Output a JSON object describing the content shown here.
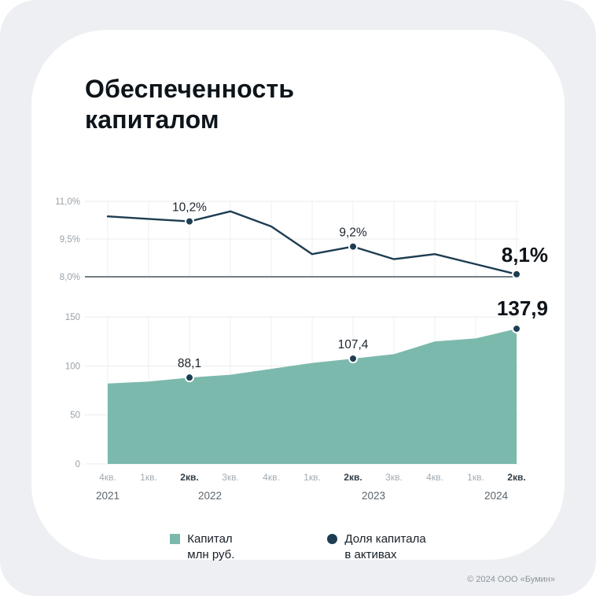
{
  "card": {
    "title_line1": "Обеспеченность",
    "title_line2": "капиталом",
    "footer": "© 2024 ООО «Бумин»"
  },
  "colors": {
    "background": "#edeff3",
    "card": "#ffffff",
    "area_fill": "#7cb9ad",
    "line": "#1d3d52",
    "dot": "#1d3d52",
    "grid": "#e8ecee",
    "vgrid": "#eef1f2",
    "baseline": "#46525b"
  },
  "legend": {
    "items": [
      {
        "type": "square",
        "color": "#7cb9ad",
        "label_line1": "Капитал",
        "label_line2": "млн руб."
      },
      {
        "type": "dot",
        "color": "#1d3d52",
        "label_line1": "Доля капитала",
        "label_line2": "в активах"
      }
    ]
  },
  "chart_data": [
    {
      "type": "line",
      "name": "Доля капитала в активах",
      "unit": "%",
      "x": [
        "4кв. 2021",
        "1кв. 2022",
        "2кв. 2022",
        "3кв. 2022",
        "4кв. 2022",
        "1кв. 2023",
        "2кв. 2023",
        "3кв. 2023",
        "4кв. 2023",
        "1кв. 2024",
        "2кв. 2024"
      ],
      "values": [
        10.4,
        10.3,
        10.2,
        10.6,
        10.0,
        8.9,
        9.2,
        8.7,
        8.9,
        8.5,
        8.1
      ],
      "ylim": [
        8.0,
        11.0
      ],
      "yticks": [
        "11,0%",
        "9,5%",
        "8,0%"
      ],
      "ytick_values": [
        11.0,
        9.5,
        8.0
      ],
      "grid": true,
      "marked_points": [
        {
          "index": 2,
          "label": "10,2%",
          "emphasis": false
        },
        {
          "index": 6,
          "label": "9,2%",
          "emphasis": false
        },
        {
          "index": 10,
          "label": "8,1%",
          "emphasis": true
        }
      ]
    },
    {
      "type": "area",
      "name": "Капитал, млн руб.",
      "x": [
        "4кв. 2021",
        "1кв. 2022",
        "2кв. 2022",
        "3кв. 2022",
        "4кв. 2022",
        "1кв. 2023",
        "2кв. 2023",
        "3кв. 2023",
        "4кв. 2023",
        "1кв. 2024",
        "2кв. 2024"
      ],
      "values": [
        82,
        84,
        88.1,
        91,
        97,
        103,
        107.4,
        112,
        125,
        128,
        137.9
      ],
      "ylim": [
        0,
        150
      ],
      "yticks": [
        "150",
        "100",
        "50",
        "0"
      ],
      "ytick_values": [
        150,
        100,
        50,
        0
      ],
      "grid": true,
      "marked_points": [
        {
          "index": 2,
          "label": "88,1",
          "emphasis": false
        },
        {
          "index": 6,
          "label": "107,4",
          "emphasis": false
        },
        {
          "index": 10,
          "label": "137,9",
          "emphasis": true
        }
      ]
    }
  ],
  "x_axis": {
    "quarters": [
      "4кв.",
      "1кв.",
      "2кв.",
      "3кв.",
      "4кв.",
      "1кв.",
      "2кв.",
      "3кв.",
      "4кв.",
      "1кв.",
      "2кв."
    ],
    "bold_indices": [
      2,
      6,
      10
    ],
    "years": [
      {
        "label": "2021",
        "between": [
          0,
          0
        ]
      },
      {
        "label": "2022",
        "between": [
          2,
          3
        ]
      },
      {
        "label": "2023",
        "between": [
          6,
          7
        ]
      },
      {
        "label": "2024",
        "between": [
          9,
          10
        ]
      }
    ]
  }
}
